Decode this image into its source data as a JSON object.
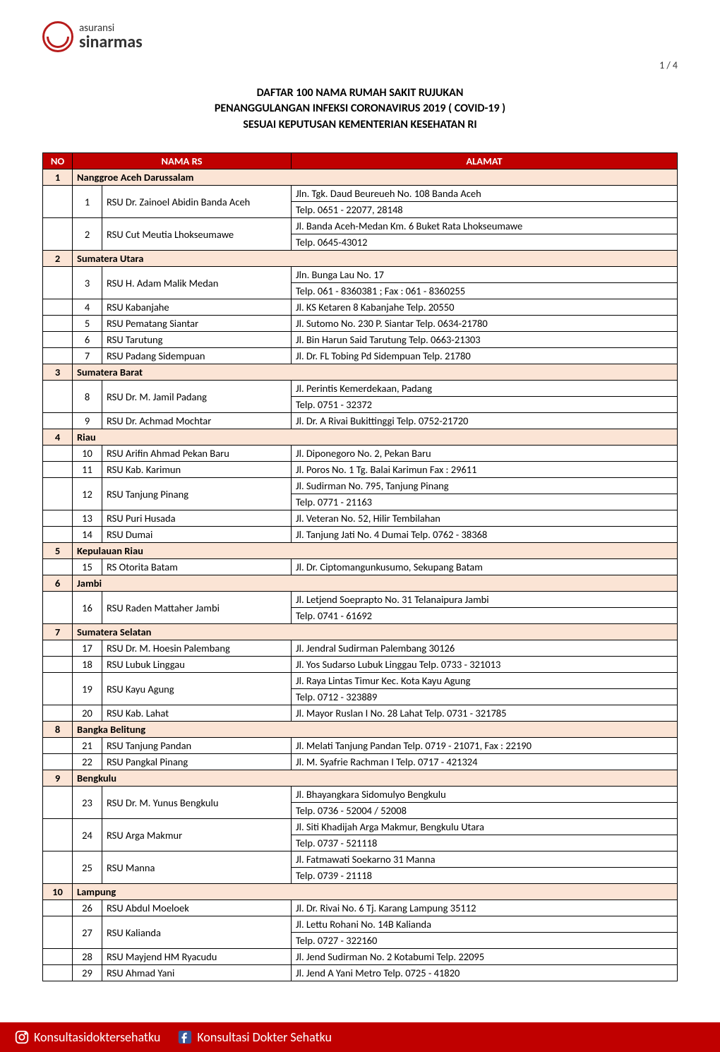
{
  "logo": {
    "top": "asuransi",
    "bottom": "sinarmas"
  },
  "page_number": "1 / 4",
  "title_lines": [
    "DAFTAR 100 NAMA RUMAH SAKIT RUJUKAN",
    "PENANGGULANGAN INFEKSI CORONAVIRUS 2019 ( COVID-19 )",
    "SESUAI KEPUTUSAN KEMENTERIAN KESEHATAN RI"
  ],
  "columns": {
    "no": "NO",
    "nama": "NAMA RS",
    "alamat": "ALAMAT"
  },
  "colors": {
    "header_bg": "#c00000",
    "header_fg": "#ffffff",
    "region_bg": "#fbe4d5",
    "border": "#000000",
    "footer_bg": "#c00000",
    "logo_red": "#b71c1c"
  },
  "regions": [
    {
      "no": "1",
      "name": "Nanggroe Aceh Darussalam",
      "rows": [
        {
          "idx": "1",
          "rs": "RSU Dr. Zainoel Abidin Banda Aceh",
          "alamat": "Jln. Tgk. Daud Beureueh No. 108 Banda Aceh\nTelp. 0651 - 22077, 28148"
        },
        {
          "idx": "2",
          "rs": "RSU Cut Meutia Lhokseumawe",
          "alamat": "Jl. Banda Aceh-Medan Km. 6 Buket Rata Lhokseumawe\nTelp. 0645-43012"
        }
      ]
    },
    {
      "no": "2",
      "name": "Sumatera Utara",
      "rows": [
        {
          "idx": "3",
          "rs": "RSU H. Adam Malik Medan",
          "alamat": "Jln. Bunga Lau No. 17\nTelp. 061 - 8360381 ; Fax : 061 - 8360255"
        },
        {
          "idx": "4",
          "rs": "RSU Kabanjahe",
          "alamat": "Jl. KS Ketaren 8 Kabanjahe Telp. 20550"
        },
        {
          "idx": "5",
          "rs": "RSU Pematang Siantar",
          "alamat": "Jl. Sutomo No. 230 P. Siantar Telp. 0634-21780"
        },
        {
          "idx": "6",
          "rs": "RSU Tarutung",
          "alamat": "Jl. Bin Harun Said Tarutung Telp. 0663-21303"
        },
        {
          "idx": "7",
          "rs": "RSU Padang Sidempuan",
          "alamat": "Jl. Dr. FL Tobing Pd Sidempuan Telp. 21780"
        }
      ]
    },
    {
      "no": "3",
      "name": "Sumatera Barat",
      "rows": [
        {
          "idx": "8",
          "rs": "RSU Dr. M. Jamil Padang",
          "alamat": "Jl. Perintis Kemerdekaan, Padang\nTelp. 0751 - 32372"
        },
        {
          "idx": "9",
          "rs": "RSU Dr. Achmad Mochtar",
          "alamat": "Jl. Dr. A Rivai Bukittinggi Telp. 0752-21720"
        }
      ]
    },
    {
      "no": "4",
      "name": "Riau",
      "rows": [
        {
          "idx": "10",
          "rs": "RSU Arifin Ahmad Pekan Baru",
          "alamat": "Jl. Diponegoro No. 2, Pekan Baru"
        },
        {
          "idx": "11",
          "rs": "RSU Kab. Karimun",
          "alamat": "Jl. Poros No. 1 Tg. Balai Karimun Fax : 29611"
        },
        {
          "idx": "12",
          "rs": "RSU Tanjung Pinang",
          "alamat": "Jl. Sudirman No. 795, Tanjung Pinang\nTelp. 0771 - 21163"
        },
        {
          "idx": "13",
          "rs": "RSU Puri Husada",
          "alamat": "Jl. Veteran No. 52, Hilir Tembilahan"
        },
        {
          "idx": "14",
          "rs": "RSU Dumai",
          "alamat": "Jl. Tanjung Jati No. 4 Dumai Telp. 0762 - 38368"
        }
      ]
    },
    {
      "no": "5",
      "name": "Kepulauan Riau",
      "rows": [
        {
          "idx": "15",
          "rs": "RS Otorita Batam",
          "alamat": "Jl. Dr. Ciptomangunkusumo, Sekupang Batam"
        }
      ]
    },
    {
      "no": "6",
      "name": "Jambi",
      "rows": [
        {
          "idx": "16",
          "rs": "RSU Raden Mattaher Jambi",
          "alamat": "Jl. Letjend Soeprapto No. 31 Telanaipura Jambi\nTelp. 0741 - 61692"
        }
      ]
    },
    {
      "no": "7",
      "name": "Sumatera Selatan",
      "rows": [
        {
          "idx": "17",
          "rs": "RSU Dr. M. Hoesin Palembang",
          "alamat": "Jl. Jendral Sudirman Palembang 30126"
        },
        {
          "idx": "18",
          "rs": "RSU Lubuk Linggau",
          "alamat": "Jl. Yos Sudarso Lubuk Linggau Telp. 0733 - 321013"
        },
        {
          "idx": "19",
          "rs": "RSU Kayu Agung",
          "alamat": "Jl. Raya Lintas Timur Kec. Kota Kayu Agung\nTelp. 0712 - 323889"
        },
        {
          "idx": "20",
          "rs": "RSU Kab. Lahat",
          "alamat": "Jl. Mayor Ruslan I No. 28 Lahat Telp. 0731 - 321785"
        }
      ]
    },
    {
      "no": "8",
      "name": "Bangka Belitung",
      "rows": [
        {
          "idx": "21",
          "rs": "RSU Tanjung Pandan",
          "alamat": "Jl. Melati Tanjung Pandan Telp. 0719 - 21071, Fax : 22190"
        },
        {
          "idx": "22",
          "rs": "RSU Pangkal Pinang",
          "alamat": "Jl. M. Syafrie Rachman I Telp. 0717 - 421324"
        }
      ]
    },
    {
      "no": "9",
      "name": "Bengkulu",
      "rows": [
        {
          "idx": "23",
          "rs": "RSU Dr. M. Yunus Bengkulu",
          "alamat": "Jl. Bhayangkara Sidomulyo Bengkulu\nTelp. 0736 - 52004 / 52008"
        },
        {
          "idx": "24",
          "rs": "RSU Arga Makmur",
          "alamat": "Jl. Siti Khadijah Arga Makmur, Bengkulu Utara\nTelp. 0737 - 521118"
        },
        {
          "idx": "25",
          "rs": "RSU Manna",
          "alamat": "Jl. Fatmawati Soekarno 31 Manna\nTelp. 0739 - 21118"
        }
      ]
    },
    {
      "no": "10",
      "name": "Lampung",
      "rows": [
        {
          "idx": "26",
          "rs": "RSU Abdul Moeloek",
          "alamat": "Jl. Dr. Rivai No. 6 Tj. Karang Lampung 35112"
        },
        {
          "idx": "27",
          "rs": "RSU Kalianda",
          "alamat": "Jl. Lettu Rohani No. 14B Kalianda\nTelp. 0727 - 322160"
        },
        {
          "idx": "28",
          "rs": "RSU Mayjend HM Ryacudu",
          "alamat": "Jl. Jend Sudirman No. 2 Kotabumi Telp. 22095"
        },
        {
          "idx": "29",
          "rs": "RSU Ahmad Yani",
          "alamat": "Jl. Jend A Yani Metro Telp. 0725 - 41820"
        }
      ]
    }
  ],
  "footer": {
    "instagram": "Konsultasidoktersehatku",
    "facebook": "Konsultasi Dokter Sehatku"
  }
}
